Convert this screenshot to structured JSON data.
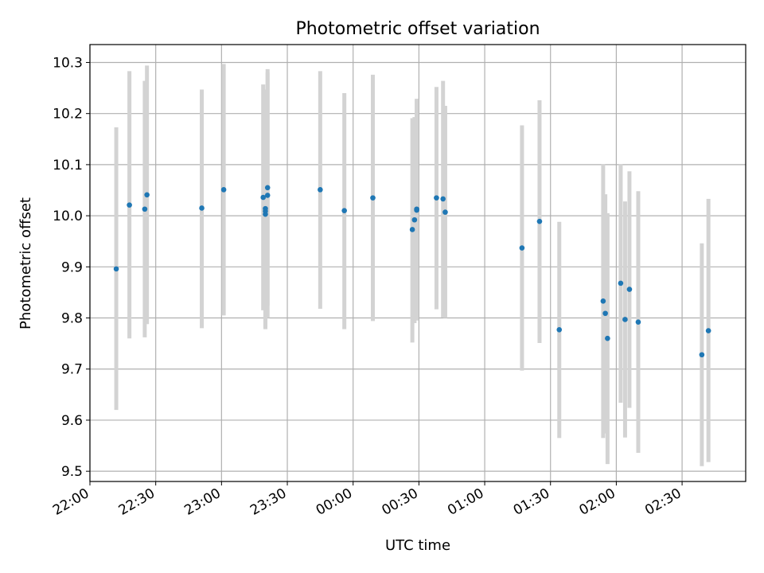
{
  "colors": {
    "point": "#1f77b4",
    "errorbar": "#d3d3d3",
    "grid": "#b0b0b0",
    "axis": "#000000"
  },
  "chart_data": {
    "type": "scatter",
    "title": "Photometric offset variation",
    "xlabel": "UTC time",
    "ylabel": "Photometric offset",
    "grid": true,
    "x_axis": "time",
    "xlim": [
      "22:00",
      "02:59"
    ],
    "ylim": [
      9.48,
      10.335
    ],
    "x_ticks": [
      "22:00",
      "22:30",
      "23:00",
      "23:30",
      "00:00",
      "00:30",
      "01:00",
      "01:30",
      "02:00",
      "02:30"
    ],
    "y_ticks": [
      "9.5",
      "9.6",
      "9.7",
      "9.8",
      "9.9",
      "10.0",
      "10.1",
      "10.2",
      "10.3"
    ],
    "points": [
      {
        "x": "22:12",
        "y": 9.896,
        "ylo": 9.62,
        "yhi": 10.173
      },
      {
        "x": "22:18",
        "y": 10.021,
        "ylo": 9.76,
        "yhi": 10.283
      },
      {
        "x": "22:25",
        "y": 10.013,
        "ylo": 9.762,
        "yhi": 10.264
      },
      {
        "x": "22:26",
        "y": 10.041,
        "ylo": 9.788,
        "yhi": 10.294
      },
      {
        "x": "22:51",
        "y": 10.015,
        "ylo": 9.78,
        "yhi": 10.247
      },
      {
        "x": "23:01",
        "y": 10.051,
        "ylo": 9.805,
        "yhi": 10.297
      },
      {
        "x": "23:19",
        "y": 10.036,
        "ylo": 9.815,
        "yhi": 10.257
      },
      {
        "x": "23:20",
        "y": 10.014,
        "ylo": 9.781,
        "yhi": 10.247
      },
      {
        "x": "23:20",
        "y": 10.003,
        "ylo": 9.778,
        "yhi": 10.229
      },
      {
        "x": "23:20",
        "y": 10.009,
        "ylo": 9.782,
        "yhi": 10.236
      },
      {
        "x": "23:21",
        "y": 10.04,
        "ylo": 9.8,
        "yhi": 10.28
      },
      {
        "x": "23:21",
        "y": 10.055,
        "ylo": 9.825,
        "yhi": 10.287
      },
      {
        "x": "23:45",
        "y": 10.051,
        "ylo": 9.818,
        "yhi": 10.283
      },
      {
        "x": "23:56",
        "y": 10.01,
        "ylo": 9.778,
        "yhi": 10.24
      },
      {
        "x": "00:09",
        "y": 10.035,
        "ylo": 9.794,
        "yhi": 10.276
      },
      {
        "x": "00:27",
        "y": 9.973,
        "ylo": 9.752,
        "yhi": 10.191
      },
      {
        "x": "00:28",
        "y": 9.992,
        "ylo": 9.79,
        "yhi": 10.193
      },
      {
        "x": "00:29",
        "y": 10.011,
        "ylo": 9.795,
        "yhi": 10.226
      },
      {
        "x": "00:29",
        "y": 10.013,
        "ylo": 9.8,
        "yhi": 10.229
      },
      {
        "x": "00:38",
        "y": 10.035,
        "ylo": 9.817,
        "yhi": 10.252
      },
      {
        "x": "00:41",
        "y": 10.033,
        "ylo": 9.801,
        "yhi": 10.264
      },
      {
        "x": "00:42",
        "y": 10.007,
        "ylo": 9.8,
        "yhi": 10.215
      },
      {
        "x": "01:17",
        "y": 9.937,
        "ylo": 9.697,
        "yhi": 10.177
      },
      {
        "x": "01:25",
        "y": 9.989,
        "ylo": 9.751,
        "yhi": 10.226
      },
      {
        "x": "01:34",
        "y": 9.777,
        "ylo": 9.565,
        "yhi": 9.988
      },
      {
        "x": "01:54",
        "y": 9.833,
        "ylo": 9.565,
        "yhi": 10.101
      },
      {
        "x": "01:55",
        "y": 9.809,
        "ylo": 9.574,
        "yhi": 10.042
      },
      {
        "x": "01:56",
        "y": 9.76,
        "ylo": 9.514,
        "yhi": 10.005
      },
      {
        "x": "02:02",
        "y": 9.868,
        "ylo": 9.634,
        "yhi": 10.101
      },
      {
        "x": "02:04",
        "y": 9.797,
        "ylo": 9.566,
        "yhi": 10.028
      },
      {
        "x": "02:06",
        "y": 9.856,
        "ylo": 9.624,
        "yhi": 10.087
      },
      {
        "x": "02:10",
        "y": 9.792,
        "ylo": 9.536,
        "yhi": 10.048
      },
      {
        "x": "02:39",
        "y": 9.728,
        "ylo": 9.51,
        "yhi": 9.946
      },
      {
        "x": "02:42",
        "y": 9.775,
        "ylo": 9.518,
        "yhi": 10.033
      }
    ]
  }
}
